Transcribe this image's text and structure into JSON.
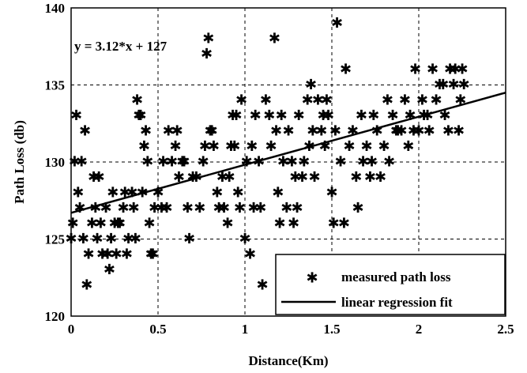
{
  "chart_data": {
    "type": "scatter",
    "title": "",
    "xlabel": "Distance(Km)",
    "ylabel": "Path Loss (db)",
    "xlim": [
      0,
      2.5
    ],
    "ylim": [
      120,
      140
    ],
    "xticks": [
      "0",
      "0.5",
      "1",
      "1.5",
      "2",
      "2.5"
    ],
    "yticks": [
      "120",
      "125",
      "130",
      "135",
      "140"
    ],
    "grid": true,
    "legend_position": "bottom-right",
    "annotation": "y = 3.12*x + 127",
    "series": [
      {
        "name": "measured path loss",
        "type": "scatter",
        "marker": "*",
        "color": "#000000",
        "points": [
          [
            0.0,
            125
          ],
          [
            0.01,
            126
          ],
          [
            0.02,
            130
          ],
          [
            0.03,
            133
          ],
          [
            0.04,
            128
          ],
          [
            0.05,
            127
          ],
          [
            0.06,
            130
          ],
          [
            0.07,
            125
          ],
          [
            0.08,
            132
          ],
          [
            0.09,
            122
          ],
          [
            0.1,
            124
          ],
          [
            0.12,
            126
          ],
          [
            0.13,
            129
          ],
          [
            0.14,
            127
          ],
          [
            0.15,
            125
          ],
          [
            0.16,
            129
          ],
          [
            0.17,
            126
          ],
          [
            0.18,
            124
          ],
          [
            0.2,
            127
          ],
          [
            0.21,
            124
          ],
          [
            0.22,
            123
          ],
          [
            0.23,
            125
          ],
          [
            0.24,
            128
          ],
          [
            0.25,
            126
          ],
          [
            0.26,
            124
          ],
          [
            0.27,
            126
          ],
          [
            0.28,
            126
          ],
          [
            0.3,
            127
          ],
          [
            0.31,
            128
          ],
          [
            0.32,
            124
          ],
          [
            0.33,
            125
          ],
          [
            0.35,
            128
          ],
          [
            0.36,
            127
          ],
          [
            0.37,
            125
          ],
          [
            0.38,
            134
          ],
          [
            0.39,
            133
          ],
          [
            0.4,
            133
          ],
          [
            0.41,
            128
          ],
          [
            0.42,
            131
          ],
          [
            0.43,
            132
          ],
          [
            0.44,
            130
          ],
          [
            0.45,
            126
          ],
          [
            0.46,
            124
          ],
          [
            0.47,
            124
          ],
          [
            0.48,
            127
          ],
          [
            0.5,
            128
          ],
          [
            0.52,
            127
          ],
          [
            0.53,
            130
          ],
          [
            0.55,
            127
          ],
          [
            0.56,
            132
          ],
          [
            0.58,
            130
          ],
          [
            0.6,
            131
          ],
          [
            0.61,
            132
          ],
          [
            0.62,
            129
          ],
          [
            0.64,
            130
          ],
          [
            0.65,
            130
          ],
          [
            0.67,
            127
          ],
          [
            0.68,
            125
          ],
          [
            0.7,
            129
          ],
          [
            0.72,
            129
          ],
          [
            0.74,
            127
          ],
          [
            0.76,
            130
          ],
          [
            0.77,
            131
          ],
          [
            0.78,
            137
          ],
          [
            0.79,
            138
          ],
          [
            0.8,
            132
          ],
          [
            0.81,
            132
          ],
          [
            0.82,
            131
          ],
          [
            0.84,
            128
          ],
          [
            0.85,
            127
          ],
          [
            0.87,
            129
          ],
          [
            0.88,
            127
          ],
          [
            0.9,
            126
          ],
          [
            0.91,
            129
          ],
          [
            0.92,
            131
          ],
          [
            0.93,
            133
          ],
          [
            0.94,
            131
          ],
          [
            0.95,
            133
          ],
          [
            0.96,
            128
          ],
          [
            0.97,
            127
          ],
          [
            0.98,
            134
          ],
          [
            1.0,
            125
          ],
          [
            1.01,
            130
          ],
          [
            1.03,
            124
          ],
          [
            1.04,
            131
          ],
          [
            1.05,
            127
          ],
          [
            1.06,
            133
          ],
          [
            1.08,
            130
          ],
          [
            1.09,
            127
          ],
          [
            1.1,
            122
          ],
          [
            1.12,
            134
          ],
          [
            1.14,
            133
          ],
          [
            1.15,
            131
          ],
          [
            1.17,
            138
          ],
          [
            1.18,
            132
          ],
          [
            1.19,
            128
          ],
          [
            1.2,
            126
          ],
          [
            1.21,
            133
          ],
          [
            1.22,
            130
          ],
          [
            1.24,
            127
          ],
          [
            1.25,
            132
          ],
          [
            1.27,
            130
          ],
          [
            1.28,
            126
          ],
          [
            1.29,
            129
          ],
          [
            1.3,
            127
          ],
          [
            1.31,
            133
          ],
          [
            1.33,
            129
          ],
          [
            1.34,
            130
          ],
          [
            1.36,
            134
          ],
          [
            1.37,
            131
          ],
          [
            1.38,
            135
          ],
          [
            1.39,
            132
          ],
          [
            1.4,
            129
          ],
          [
            1.42,
            134
          ],
          [
            1.44,
            132
          ],
          [
            1.45,
            133
          ],
          [
            1.46,
            131
          ],
          [
            1.47,
            134
          ],
          [
            1.48,
            133
          ],
          [
            1.5,
            128
          ],
          [
            1.51,
            126
          ],
          [
            1.52,
            132
          ],
          [
            1.53,
            139
          ],
          [
            1.55,
            130
          ],
          [
            1.57,
            126
          ],
          [
            1.58,
            136
          ],
          [
            1.6,
            131
          ],
          [
            1.62,
            132
          ],
          [
            1.64,
            129
          ],
          [
            1.65,
            127
          ],
          [
            1.67,
            133
          ],
          [
            1.68,
            130
          ],
          [
            1.7,
            131
          ],
          [
            1.72,
            129
          ],
          [
            1.73,
            130
          ],
          [
            1.74,
            133
          ],
          [
            1.76,
            132
          ],
          [
            1.78,
            129
          ],
          [
            1.8,
            131
          ],
          [
            1.82,
            134
          ],
          [
            1.83,
            130
          ],
          [
            1.85,
            133
          ],
          [
            1.87,
            132
          ],
          [
            1.88,
            132
          ],
          [
            1.9,
            132
          ],
          [
            1.92,
            134
          ],
          [
            1.94,
            131
          ],
          [
            1.95,
            133
          ],
          [
            1.97,
            132
          ],
          [
            1.98,
            136
          ],
          [
            2.0,
            132
          ],
          [
            2.02,
            134
          ],
          [
            2.03,
            133
          ],
          [
            2.05,
            133
          ],
          [
            2.06,
            132
          ],
          [
            2.08,
            136
          ],
          [
            2.1,
            134
          ],
          [
            2.12,
            135
          ],
          [
            2.14,
            135
          ],
          [
            2.15,
            133
          ],
          [
            2.17,
            132
          ],
          [
            2.18,
            136
          ],
          [
            2.2,
            135
          ],
          [
            2.21,
            136
          ],
          [
            2.23,
            132
          ],
          [
            2.24,
            134
          ],
          [
            2.25,
            136
          ],
          [
            2.26,
            135
          ]
        ]
      },
      {
        "name": "linear regression fit",
        "type": "line",
        "color": "#000000",
        "points": [
          [
            0,
            126.7
          ],
          [
            2.5,
            134.5
          ]
        ]
      }
    ]
  }
}
